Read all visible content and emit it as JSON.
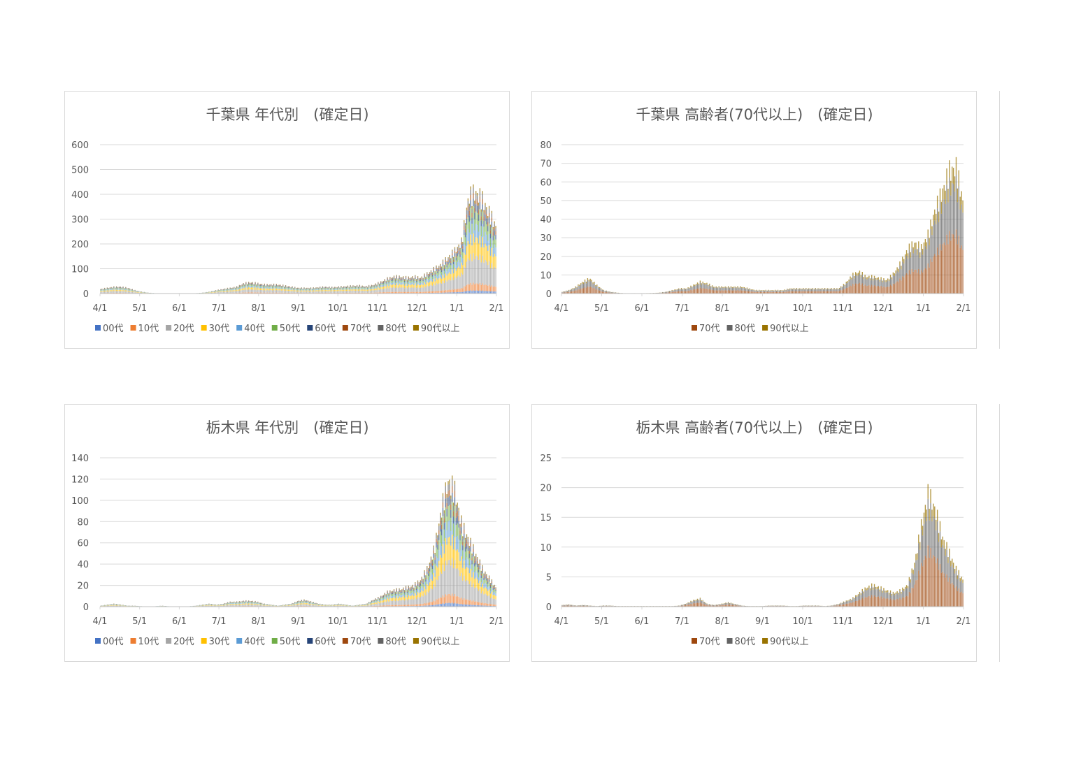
{
  "colors": {
    "age_00": "#4472C4",
    "age_10": "#ED7D31",
    "age_20": "#A5A5A5",
    "age_30": "#FFC000",
    "age_40": "#5B9BD5",
    "age_50": "#70AD47",
    "age_60": "#264478",
    "age_70": "#9E480E",
    "age_80": "#636363",
    "age_90": "#997300",
    "grid": "#d9d9d9",
    "text": "#595959"
  },
  "chart_data": [
    {
      "id": "chiba-age",
      "type": "bar",
      "stacked": true,
      "title": "千葉県 年代別　(確定日)",
      "yticks": [
        "0",
        "100",
        "200",
        "300",
        "400",
        "500",
        "600"
      ],
      "ylim": [
        0,
        600
      ],
      "xticks": [
        "4/1",
        "5/1",
        "6/1",
        "7/1",
        "8/1",
        "9/1",
        "10/1",
        "11/1",
        "12/1",
        "1/1",
        "2/1"
      ],
      "legend_position": "bottom",
      "series": [
        {
          "name": "00代",
          "color": "#4472C4"
        },
        {
          "name": "10代",
          "color": "#ED7D31"
        },
        {
          "name": "20代",
          "color": "#A5A5A5"
        },
        {
          "name": "30代",
          "color": "#FFC000"
        },
        {
          "name": "40代",
          "color": "#5B9BD5"
        },
        {
          "name": "50代",
          "color": "#70AD47"
        },
        {
          "name": "60代",
          "color": "#264478"
        },
        {
          "name": "70代",
          "color": "#9E480E"
        },
        {
          "name": "80代",
          "color": "#636363"
        },
        {
          "name": "90代以上",
          "color": "#997300"
        }
      ],
      "shares": [
        0.03,
        0.07,
        0.27,
        0.18,
        0.13,
        0.12,
        0.07,
        0.05,
        0.05,
        0.03
      ],
      "total_by_week": [
        20,
        25,
        30,
        30,
        25,
        15,
        8,
        4,
        2,
        1,
        1,
        1,
        1,
        1,
        2,
        4,
        8,
        15,
        20,
        25,
        30,
        45,
        50,
        45,
        40,
        40,
        40,
        35,
        30,
        25,
        25,
        25,
        28,
        30,
        28,
        30,
        32,
        35,
        35,
        32,
        38,
        50,
        65,
        75,
        75,
        70,
        75,
        70,
        90,
        110,
        130,
        160,
        190,
        230,
        430,
        450,
        420,
        360,
        300
      ]
    },
    {
      "id": "chiba-elderly",
      "type": "bar",
      "stacked": true,
      "title": "千葉県 高齢者(70代以上)　(確定日)",
      "yticks": [
        "0",
        "10",
        "20",
        "30",
        "40",
        "50",
        "60",
        "70",
        "80"
      ],
      "ylim": [
        0,
        80
      ],
      "xticks": [
        "4/1",
        "5/1",
        "6/1",
        "7/1",
        "8/1",
        "9/1",
        "10/1",
        "11/1",
        "12/1",
        "1/1",
        "2/1"
      ],
      "legend_position": "bottom",
      "series": [
        {
          "name": "70代",
          "color": "#9E480E"
        },
        {
          "name": "80代",
          "color": "#636363"
        },
        {
          "name": "90代以上",
          "color": "#997300"
        }
      ],
      "shares": [
        0.47,
        0.4,
        0.13
      ],
      "total_by_week": [
        1,
        2,
        4,
        7,
        9,
        5,
        2,
        1,
        0.5,
        0.2,
        0.2,
        0.2,
        0.2,
        0.3,
        0.5,
        1,
        2,
        3,
        3,
        5,
        7,
        6,
        4,
        4,
        4,
        4,
        4,
        3,
        2,
        2,
        2,
        2,
        2,
        3,
        3,
        3,
        3,
        3,
        3,
        3,
        3,
        6,
        11,
        13,
        10,
        10,
        9,
        8,
        12,
        18,
        26,
        30,
        27,
        35,
        50,
        60,
        72,
        75,
        55
      ]
    },
    {
      "id": "tochigi-age",
      "type": "bar",
      "stacked": true,
      "title": "栃木県 年代別　(確定日)",
      "yticks": [
        "0",
        "20",
        "40",
        "60",
        "80",
        "100",
        "120",
        "140"
      ],
      "ylim": [
        0,
        140
      ],
      "xticks": [
        "4/1",
        "5/1",
        "6/1",
        "7/1",
        "8/1",
        "9/1",
        "10/1",
        "11/1",
        "12/1",
        "1/1",
        "2/1"
      ],
      "legend_position": "bottom",
      "series": [
        {
          "name": "00代",
          "color": "#4472C4"
        },
        {
          "name": "10代",
          "color": "#ED7D31"
        },
        {
          "name": "20代",
          "color": "#A5A5A5"
        },
        {
          "name": "30代",
          "color": "#FFC000"
        },
        {
          "name": "40代",
          "color": "#5B9BD5"
        },
        {
          "name": "50代",
          "color": "#70AD47"
        },
        {
          "name": "60代",
          "color": "#264478"
        },
        {
          "name": "70代",
          "color": "#9E480E"
        },
        {
          "name": "80代",
          "color": "#636363"
        },
        {
          "name": "90代以上",
          "color": "#997300"
        }
      ],
      "shares": [
        0.03,
        0.07,
        0.27,
        0.18,
        0.13,
        0.12,
        0.07,
        0.05,
        0.05,
        0.03
      ],
      "total_by_week": [
        1,
        2,
        3,
        2,
        1,
        1,
        0.5,
        0.2,
        0.5,
        1,
        0.5,
        0.2,
        0.2,
        0.5,
        1,
        2,
        3,
        2,
        3,
        5,
        5,
        6,
        6,
        5,
        3,
        2,
        1,
        2,
        3,
        6,
        7,
        5,
        3,
        2,
        2,
        3,
        2,
        1,
        2,
        3,
        7,
        10,
        15,
        17,
        18,
        20,
        22,
        28,
        40,
        60,
        100,
        130,
        120,
        85,
        70,
        55,
        40,
        30,
        20
      ]
    },
    {
      "id": "tochigi-elderly",
      "type": "bar",
      "stacked": true,
      "title": "栃木県 高齢者(70代以上)　(確定日)",
      "yticks": [
        "0",
        "5",
        "10",
        "15",
        "20",
        "25"
      ],
      "ylim": [
        0,
        25
      ],
      "xticks": [
        "4/1",
        "5/1",
        "6/1",
        "7/1",
        "8/1",
        "9/1",
        "10/1",
        "11/1",
        "12/1",
        "1/1",
        "2/1"
      ],
      "legend_position": "bottom",
      "series": [
        {
          "name": "70代",
          "color": "#9E480E"
        },
        {
          "name": "80代",
          "color": "#636363"
        },
        {
          "name": "90代以上",
          "color": "#997300"
        }
      ],
      "shares": [
        0.5,
        0.38,
        0.12
      ],
      "total_by_week": [
        0.3,
        0.4,
        0.2,
        0.3,
        0.2,
        0.1,
        0.2,
        0.2,
        0.1,
        0.1,
        0.1,
        0.1,
        0.1,
        0.1,
        0.1,
        0.1,
        0.1,
        0.2,
        0.6,
        1.2,
        1.5,
        0.5,
        0.3,
        0.5,
        0.8,
        0.5,
        0.2,
        0.1,
        0.1,
        0.1,
        0.2,
        0.2,
        0.2,
        0.1,
        0.1,
        0.2,
        0.2,
        0.2,
        0.1,
        0.2,
        0.5,
        1,
        1.5,
        2.5,
        3.5,
        4,
        3.5,
        3,
        2.5,
        3,
        4,
        8,
        15,
        21,
        18,
        13,
        10,
        7,
        5
      ]
    }
  ]
}
